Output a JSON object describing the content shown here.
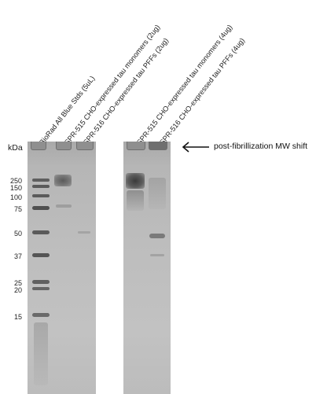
{
  "axis": {
    "unit_label": "kDa"
  },
  "mw_markers": [
    "250",
    "150",
    "100",
    "75",
    "50",
    "37",
    "25",
    "20",
    "15"
  ],
  "lanes": [
    "BioRad All Blue Stds (5uL)",
    "SPR-515 CHO-expressed tau monomers (2ug)",
    "SPR-516 CHO-expressed tau PFFs (2ug)",
    "SPR-515 CHO-expressed tau monomers (4ug)",
    "SPR-516 CHO-expressed tau PFFs (4ug)"
  ],
  "annotation": {
    "text": "post-fibrillization MW shift",
    "arrow_icon": "left-arrow-icon"
  },
  "colors": {
    "gel": "#bdbdbd",
    "band_dark": "#4a4a4a",
    "well": "#8f8f8f"
  }
}
